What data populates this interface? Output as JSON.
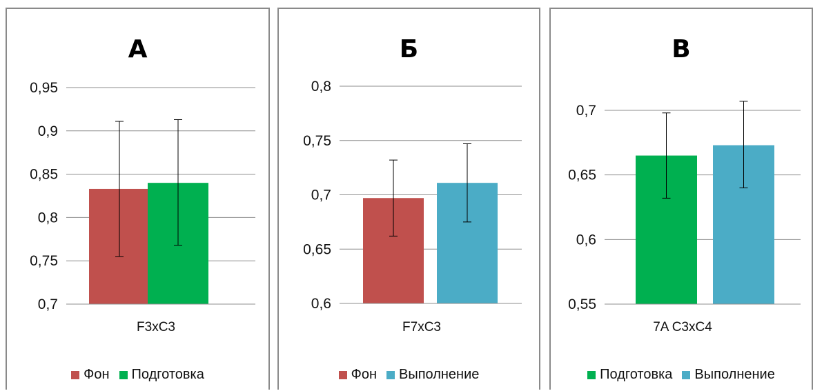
{
  "chart_data": [
    {
      "type": "bar",
      "title": "А",
      "categories": [
        "F3xC3"
      ],
      "series": [
        {
          "name": "Фон",
          "color": "#C0504D",
          "values": [
            0.833
          ],
          "error_low": [
            0.755
          ],
          "error_high": [
            0.911
          ]
        },
        {
          "name": "Подготовка",
          "color": "#00B050",
          "values": [
            0.84
          ],
          "error_low": [
            0.768
          ],
          "error_high": [
            0.913
          ]
        }
      ],
      "ylim": [
        0.7,
        0.95
      ],
      "yticks": [
        "0,7",
        "0,75",
        "0,8",
        "0,85",
        "0,9",
        "0,95"
      ],
      "grid": true,
      "legend_position": "bottom"
    },
    {
      "type": "bar",
      "title": "Б",
      "categories": [
        "F7xC3"
      ],
      "series": [
        {
          "name": "Фон",
          "color": "#C0504D",
          "values": [
            0.697
          ],
          "error_low": [
            0.662
          ],
          "error_high": [
            0.732
          ]
        },
        {
          "name": "Выполнение",
          "color": "#4BACC6",
          "values": [
            0.711
          ],
          "error_low": [
            0.675
          ],
          "error_high": [
            0.747
          ]
        }
      ],
      "ylim": [
        0.6,
        0.8
      ],
      "yticks": [
        "0,6",
        "0,65",
        "0,7",
        "0,75",
        "0,8"
      ],
      "grid": true,
      "legend_position": "bottom"
    },
    {
      "type": "bar",
      "title": "В",
      "categories": [
        "7A C3xC4"
      ],
      "series": [
        {
          "name": "Подготовка",
          "color": "#00B050",
          "values": [
            0.665
          ],
          "error_low": [
            0.632
          ],
          "error_high": [
            0.698
          ]
        },
        {
          "name": "Выполнение",
          "color": "#4BACC6",
          "values": [
            0.673
          ],
          "error_low": [
            0.64
          ],
          "error_high": [
            0.707
          ]
        }
      ],
      "ylim": [
        0.55,
        0.7
      ],
      "yticks": [
        "0,55",
        "0,6",
        "0,65",
        "0,7"
      ],
      "grid": true,
      "legend_position": "bottom"
    }
  ]
}
